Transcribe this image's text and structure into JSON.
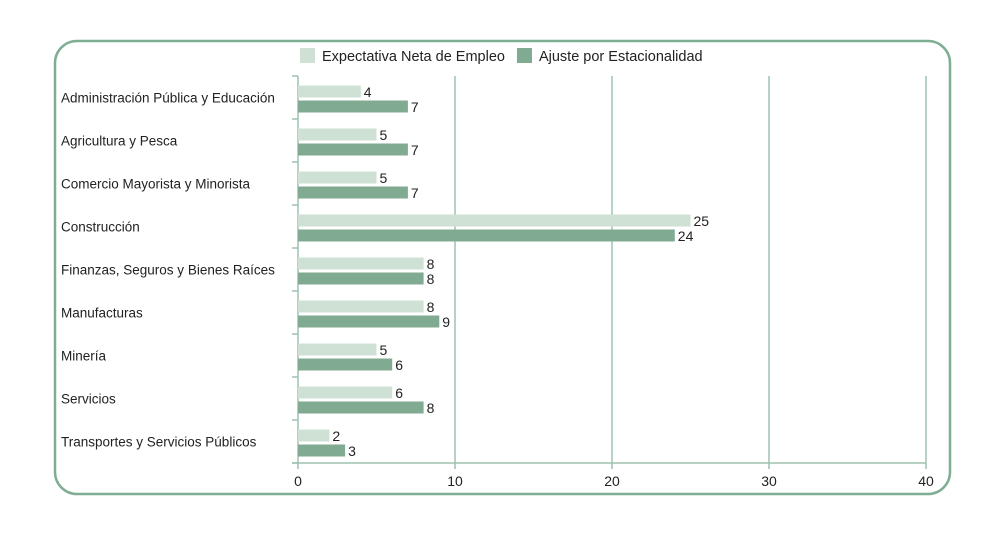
{
  "chart_data": {
    "type": "bar",
    "orientation": "horizontal",
    "categories": [
      "Administración Pública y Educación",
      "Agricultura y Pesca",
      "Comercio Mayorista y Minorista",
      "Construcción",
      "Finanzas, Seguros y Bienes Raíces",
      "Manufacturas",
      "Minería",
      "Servicios",
      "Transportes y Servicios Públicos"
    ],
    "series": [
      {
        "name": "Expectativa Neta de Empleo",
        "color": "#cfe0d5",
        "values": [
          4,
          5,
          5,
          25,
          8,
          8,
          5,
          6,
          2
        ]
      },
      {
        "name": "Ajuste por Estacionalidad",
        "color": "#80aa92",
        "values": [
          7,
          7,
          7,
          24,
          8,
          9,
          6,
          8,
          3
        ]
      }
    ],
    "xlim": [
      0,
      40
    ],
    "xticks": [
      0,
      10,
      20,
      30,
      40
    ],
    "grid": "vertical",
    "legend": "top-center",
    "frame_color": "#7fae94",
    "grid_color": "#9fc2b0"
  }
}
